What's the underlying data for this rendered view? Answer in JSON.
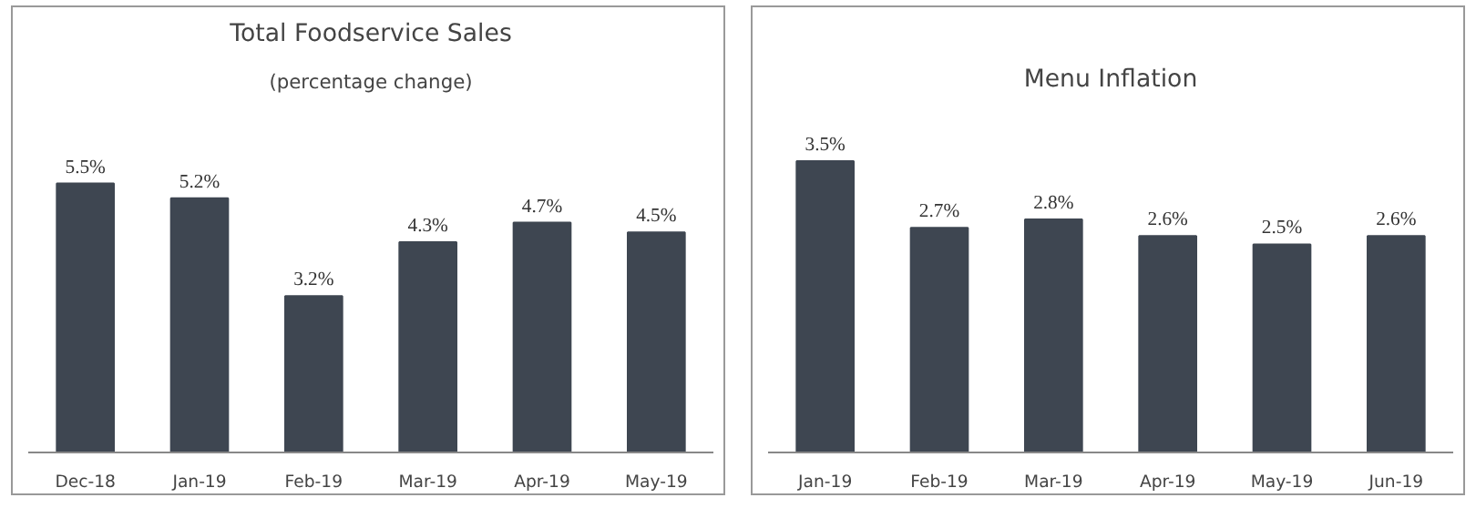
{
  "chart_data": [
    {
      "type": "bar",
      "title": "Total Foodservice Sales",
      "subtitle": "(percentage change)",
      "categories": [
        "Dec-18",
        "Jan-19",
        "Feb-19",
        "Mar-19",
        "Apr-19",
        "May-19"
      ],
      "values": [
        5.5,
        5.2,
        3.2,
        4.3,
        4.7,
        4.5
      ],
      "value_labels": [
        "5.5%",
        "5.2%",
        "3.2%",
        "4.3%",
        "4.7%",
        "4.5%"
      ],
      "color": "#3e4651"
    },
    {
      "type": "bar",
      "title": "Menu Inflation",
      "categories": [
        "Jan-19",
        "Feb-19",
        "Mar-19",
        "Apr-19",
        "May-19",
        "Jun-19"
      ],
      "values": [
        3.5,
        2.7,
        2.8,
        2.6,
        2.5,
        2.6
      ],
      "value_labels": [
        "3.5%",
        "2.7%",
        "2.8%",
        "2.6%",
        "2.5%",
        "2.6%"
      ],
      "color": "#3e4651"
    }
  ]
}
